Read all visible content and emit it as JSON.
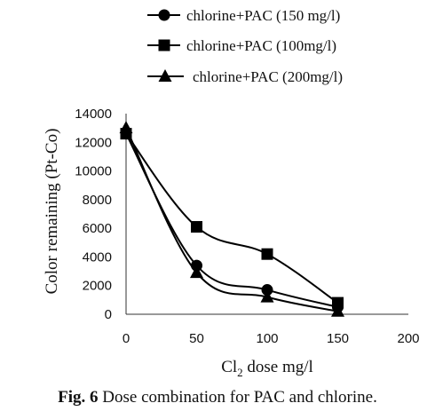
{
  "chart_data": {
    "type": "line",
    "xlabel": {
      "base": "Cl",
      "sub": "2",
      "rest": " dose mg/l"
    },
    "ylabel": "Color remaining (Pt-Co)",
    "xlim": [
      0,
      200
    ],
    "ylim": [
      0,
      14000
    ],
    "xticks": [
      0,
      50,
      100,
      150,
      200
    ],
    "yticks": [
      0,
      2000,
      4000,
      6000,
      8000,
      10000,
      12000,
      14000
    ],
    "grid": false,
    "legend_position": "top",
    "series": [
      {
        "name": "chlorine+PAC (150 mg/l)",
        "marker": "circle",
        "x": [
          0,
          50,
          100,
          150
        ],
        "y": [
          12600,
          3400,
          1700,
          500
        ]
      },
      {
        "name": "chlorine+PAC (100mg/l)",
        "marker": "square",
        "x": [
          0,
          50,
          100,
          150
        ],
        "y": [
          12600,
          6100,
          4200,
          800
        ]
      },
      {
        "name": "chlorine+PAC (200mg/l)",
        "marker": "triangle",
        "x": [
          0,
          50,
          100,
          150
        ],
        "y": [
          13000,
          2900,
          1200,
          200
        ]
      }
    ]
  },
  "caption": {
    "label": "Fig. 6",
    "text": " Dose combination for PAC and chlorine."
  }
}
